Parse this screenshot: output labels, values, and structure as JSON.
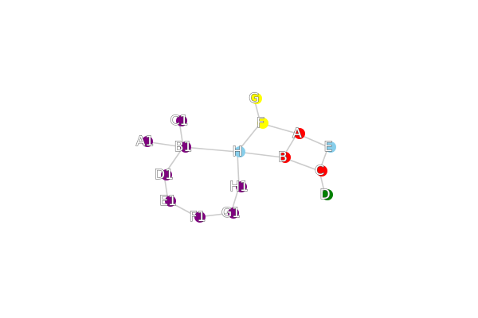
{
  "graph": {
    "nodes": [
      {
        "id": "G",
        "label": "G",
        "color": "#ffff00"
      },
      {
        "id": "F",
        "label": "F",
        "color": "#ffff00"
      },
      {
        "id": "A",
        "label": "A",
        "color": "#ff0000"
      },
      {
        "id": "E",
        "label": "E",
        "color": "#87ceeb"
      },
      {
        "id": "B",
        "label": "B",
        "color": "#ff0000"
      },
      {
        "id": "C",
        "label": "C",
        "color": "#ff0000"
      },
      {
        "id": "D",
        "label": "D",
        "color": "#008000"
      },
      {
        "id": "H",
        "label": "H",
        "color": "#87ceeb"
      },
      {
        "id": "H1",
        "label": "H1",
        "color": "#800080"
      },
      {
        "id": "G1",
        "label": "G1",
        "color": "#800080"
      },
      {
        "id": "F1",
        "label": "F1",
        "color": "#800080"
      },
      {
        "id": "E1",
        "label": "E1",
        "color": "#800080"
      },
      {
        "id": "D1",
        "label": "D1",
        "color": "#800080"
      },
      {
        "id": "B1",
        "label": "B1",
        "color": "#800080"
      },
      {
        "id": "A1",
        "label": "A1",
        "color": "#800080"
      },
      {
        "id": "C1",
        "label": "C1",
        "color": "#800080"
      }
    ],
    "edges": [
      [
        "G",
        "F"
      ],
      [
        "F",
        "A"
      ],
      [
        "F",
        "H"
      ],
      [
        "A",
        "E"
      ],
      [
        "A",
        "B"
      ],
      [
        "B",
        "H"
      ],
      [
        "B",
        "C"
      ],
      [
        "E",
        "C"
      ],
      [
        "C",
        "D"
      ],
      [
        "H",
        "B1"
      ],
      [
        "H",
        "H1"
      ],
      [
        "H1",
        "G1"
      ],
      [
        "G1",
        "F1"
      ],
      [
        "F1",
        "E1"
      ],
      [
        "E1",
        "D1"
      ],
      [
        "D1",
        "B1"
      ],
      [
        "B1",
        "A1"
      ],
      [
        "B1",
        "C1"
      ]
    ]
  }
}
